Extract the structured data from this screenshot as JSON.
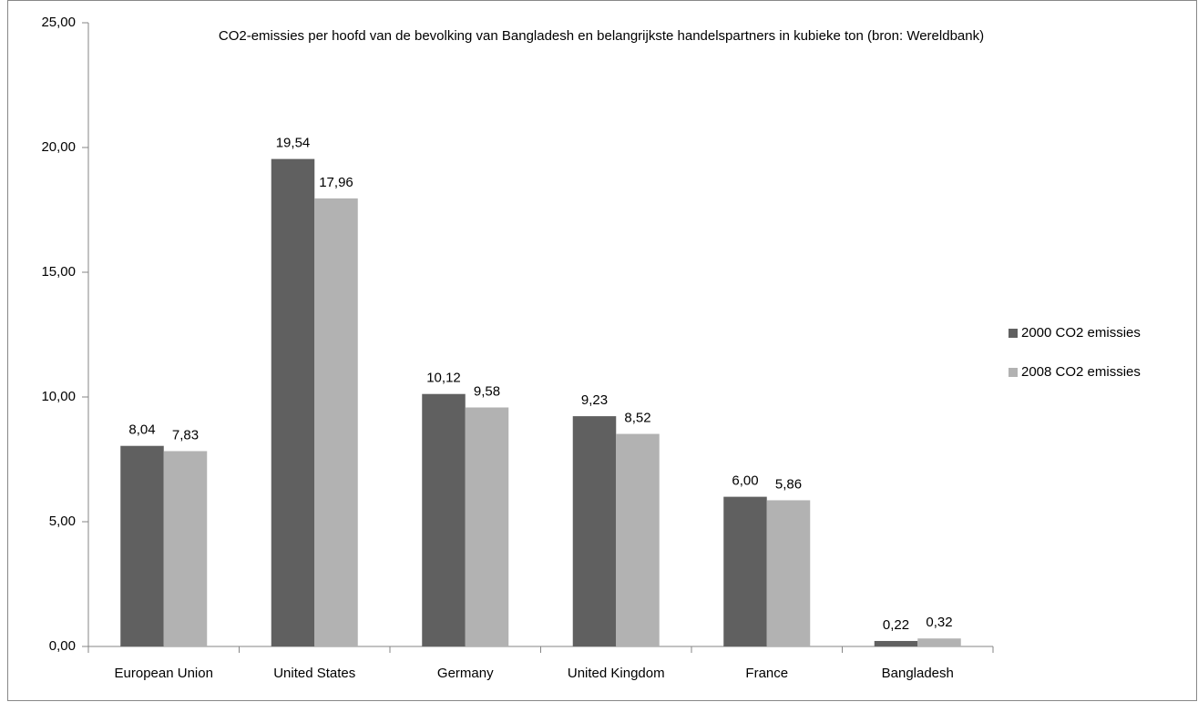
{
  "chart_data": {
    "type": "bar",
    "title": "CO2-emissies per hoofd van de bevolking van Bangladesh en belangrijkste handelspartners in kubieke ton (bron: Wereldbank)",
    "categories": [
      "European Union",
      "United States",
      "Germany",
      "United Kingdom",
      "France",
      "Bangladesh"
    ],
    "series": [
      {
        "name": "2000 CO2 emissies",
        "color": "#606060",
        "values": [
          8.04,
          19.54,
          10.12,
          9.23,
          6.0,
          0.22
        ],
        "value_labels": [
          "8,04",
          "19,54",
          "10,12",
          "9,23",
          "6,00",
          "0,22"
        ]
      },
      {
        "name": "2008 CO2 emissies",
        "color": "#b2b2b2",
        "values": [
          7.83,
          17.96,
          9.58,
          8.52,
          5.86,
          0.32
        ],
        "value_labels": [
          "7,83",
          "17,96",
          "9,58",
          "8,52",
          "5,86",
          "0,32"
        ]
      }
    ],
    "ylim": [
      0,
      25
    ],
    "yticks": [
      {
        "value": 0,
        "label": "0,00"
      },
      {
        "value": 5,
        "label": "5,00"
      },
      {
        "value": 10,
        "label": "10,00"
      },
      {
        "value": 15,
        "label": "15,00"
      },
      {
        "value": 20,
        "label": "20,00"
      },
      {
        "value": 25,
        "label": "25,00"
      }
    ],
    "legend": "right",
    "grid": false
  }
}
